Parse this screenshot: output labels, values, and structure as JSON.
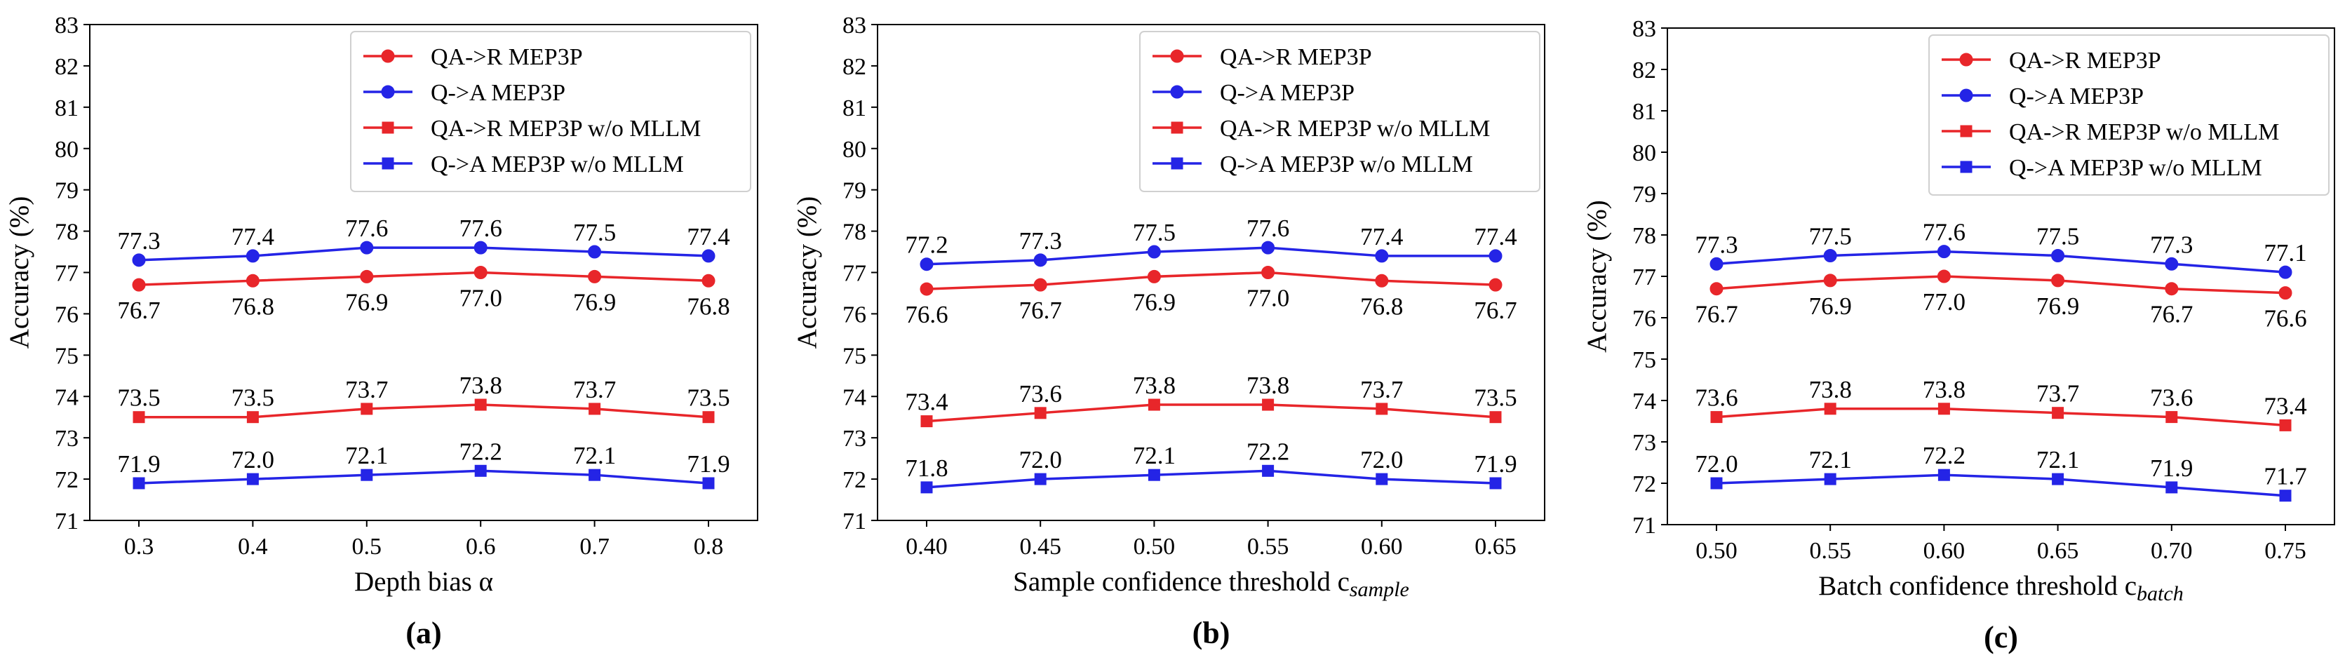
{
  "colors": {
    "red": "#e8262a",
    "blue": "#2424e6",
    "axis": "#000000"
  },
  "legend": [
    {
      "label": "QA->R MEP3P",
      "color": "#e8262a",
      "marker": "circle"
    },
    {
      "label": "Q->A MEP3P",
      "color": "#2424e6",
      "marker": "circle"
    },
    {
      "label": "QA->R MEP3P w/o MLLM",
      "color": "#e8262a",
      "marker": "square"
    },
    {
      "label": "Q->A MEP3P w/o MLLM",
      "color": "#2424e6",
      "marker": "square"
    }
  ],
  "chart_data": [
    {
      "type": "line",
      "panel_label": "(a)",
      "xlabel": "Depth bias α",
      "xlabel_sub": "",
      "ylabel": "Accuracy (%)",
      "ylim": [
        71,
        83
      ],
      "yticks": [
        "71",
        "72",
        "73",
        "74",
        "75",
        "76",
        "77",
        "78",
        "79",
        "80",
        "81",
        "82",
        "83"
      ],
      "categories": [
        "0.3",
        "0.4",
        "0.5",
        "0.6",
        "0.7",
        "0.8"
      ],
      "legend_position": "top-right",
      "series": [
        {
          "name": "Q->A MEP3P",
          "values": [
            77.3,
            77.4,
            77.6,
            77.6,
            77.5,
            77.4
          ],
          "labels": [
            "77.3",
            "77.4",
            "77.6",
            "77.6",
            "77.5",
            "77.4"
          ]
        },
        {
          "name": "QA->R MEP3P",
          "values": [
            76.7,
            76.8,
            76.9,
            77.0,
            76.9,
            76.8
          ],
          "labels": [
            "76.7",
            "76.8",
            "76.9",
            "77.0",
            "76.9",
            "76.8"
          ]
        },
        {
          "name": "QA->R MEP3P w/o MLLM",
          "values": [
            73.5,
            73.5,
            73.7,
            73.8,
            73.7,
            73.5
          ],
          "labels": [
            "73.5",
            "73.5",
            "73.7",
            "73.8",
            "73.7",
            "73.5"
          ]
        },
        {
          "name": "Q->A MEP3P w/o MLLM",
          "values": [
            71.9,
            72.0,
            72.1,
            72.2,
            72.1,
            71.9
          ],
          "labels": [
            "71.9",
            "72.0",
            "72.1",
            "72.2",
            "72.1",
            "71.9"
          ]
        }
      ]
    },
    {
      "type": "line",
      "panel_label": "(b)",
      "xlabel": "Sample confidence threshold c",
      "xlabel_sub": "sample",
      "ylabel": "Accuracy (%)",
      "ylim": [
        71,
        83
      ],
      "yticks": [
        "71",
        "72",
        "73",
        "74",
        "75",
        "76",
        "77",
        "78",
        "79",
        "80",
        "81",
        "82",
        "83"
      ],
      "categories": [
        "0.40",
        "0.45",
        "0.50",
        "0.55",
        "0.60",
        "0.65"
      ],
      "legend_position": "top-right",
      "series": [
        {
          "name": "Q->A MEP3P",
          "values": [
            77.2,
            77.3,
            77.5,
            77.6,
            77.4,
            77.4
          ],
          "labels": [
            "77.2",
            "77.3",
            "77.5",
            "77.6",
            "77.4",
            "77.4"
          ]
        },
        {
          "name": "QA->R MEP3P",
          "values": [
            76.6,
            76.7,
            76.9,
            77.0,
            76.8,
            76.7
          ],
          "labels": [
            "76.6",
            "76.7",
            "76.9",
            "77.0",
            "76.8",
            "76.7"
          ]
        },
        {
          "name": "QA->R MEP3P w/o MLLM",
          "values": [
            73.4,
            73.6,
            73.8,
            73.8,
            73.7,
            73.5
          ],
          "labels": [
            "73.4",
            "73.6",
            "73.8",
            "73.8",
            "73.7",
            "73.5"
          ]
        },
        {
          "name": "Q->A MEP3P w/o MLLM",
          "values": [
            71.8,
            72.0,
            72.1,
            72.2,
            72.0,
            71.9
          ],
          "labels": [
            "71.8",
            "72.0",
            "72.1",
            "72.2",
            "72.0",
            "71.9"
          ]
        }
      ]
    },
    {
      "type": "line",
      "panel_label": "(c)",
      "xlabel": "Batch confidence threshold c",
      "xlabel_sub": "batch",
      "ylabel": "Accuracy (%)",
      "ylim": [
        71,
        83
      ],
      "yticks": [
        "71",
        "72",
        "73",
        "74",
        "75",
        "76",
        "77",
        "78",
        "79",
        "80",
        "81",
        "82",
        "83"
      ],
      "categories": [
        "0.50",
        "0.55",
        "0.60",
        "0.65",
        "0.70",
        "0.75"
      ],
      "legend_position": "top-right",
      "series": [
        {
          "name": "Q->A MEP3P",
          "values": [
            77.3,
            77.5,
            77.6,
            77.5,
            77.3,
            77.1
          ],
          "labels": [
            "77.3",
            "77.5",
            "77.6",
            "77.5",
            "77.3",
            "77.1"
          ]
        },
        {
          "name": "QA->R MEP3P",
          "values": [
            76.7,
            76.9,
            77.0,
            76.9,
            76.7,
            76.6
          ],
          "labels": [
            "76.7",
            "76.9",
            "77.0",
            "76.9",
            "76.7",
            "76.6"
          ]
        },
        {
          "name": "QA->R MEP3P w/o MLLM",
          "values": [
            73.6,
            73.8,
            73.8,
            73.7,
            73.6,
            73.4
          ],
          "labels": [
            "73.6",
            "73.8",
            "73.8",
            "73.7",
            "73.6",
            "73.4"
          ]
        },
        {
          "name": "Q->A MEP3P w/o MLLM",
          "values": [
            72.0,
            72.1,
            72.2,
            72.1,
            71.9,
            71.7
          ],
          "labels": [
            "72.0",
            "72.1",
            "72.2",
            "72.1",
            "71.9",
            "71.7"
          ]
        }
      ]
    }
  ]
}
